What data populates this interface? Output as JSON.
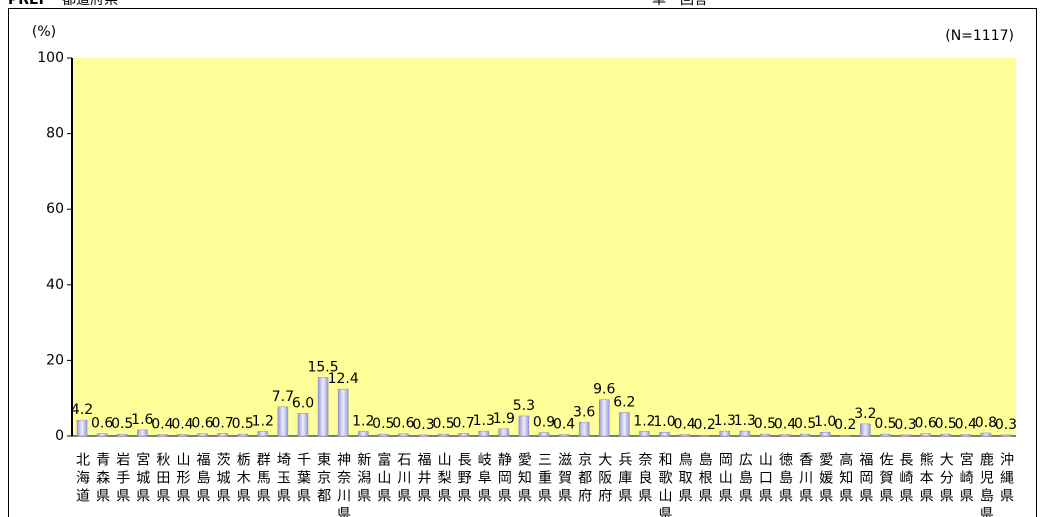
{
  "header": {
    "code": "PREF",
    "label": "都道府県",
    "answer_type": "単一回答"
  },
  "chart_data": {
    "type": "bar",
    "y_label": "(%)",
    "annotation": "(N=1117)",
    "categories": [
      "北海道",
      "青森県",
      "岩手県",
      "宮城県",
      "秋田県",
      "山形県",
      "福島県",
      "茨城県",
      "栃木県",
      "群馬県",
      "埼玉県",
      "千葉県",
      "東京都",
      "神奈川県",
      "新潟県",
      "富山県",
      "石川県",
      "福井県",
      "山梨県",
      "長野県",
      "岐阜県",
      "静岡県",
      "愛知県",
      "三重県",
      "滋賀県",
      "京都府",
      "大阪府",
      "兵庫県",
      "奈良県",
      "和歌山県",
      "鳥取県",
      "島根県",
      "岡山県",
      "広島県",
      "山口県",
      "徳島県",
      "香川県",
      "愛媛県",
      "高知県",
      "福岡県",
      "佐賀県",
      "長崎県",
      "熊本県",
      "大分県",
      "宮崎県",
      "鹿児島県",
      "沖縄県"
    ],
    "values": [
      4.2,
      0.6,
      0.5,
      1.6,
      0.4,
      0.4,
      0.6,
      0.7,
      0.5,
      1.2,
      7.7,
      6.0,
      15.5,
      12.4,
      1.2,
      0.5,
      0.6,
      0.3,
      0.5,
      0.7,
      1.3,
      1.9,
      5.3,
      0.9,
      0.4,
      3.6,
      9.6,
      6.2,
      1.2,
      1.0,
      0.4,
      0.2,
      1.3,
      1.3,
      0.5,
      0.4,
      0.5,
      1.0,
      0.2,
      3.2,
      0.5,
      0.3,
      0.6,
      0.5,
      0.4,
      0.8,
      0.3
    ],
    "value_labels": [
      "4.2",
      "0.6",
      "0.5",
      "1.6",
      "0.4",
      "0.4",
      "0.6",
      "0.7",
      "0.5",
      "1.2",
      "7.7",
      "6.0",
      "15.5",
      "12.4",
      "1.2",
      "0.5",
      "0.6",
      "0.3",
      "0.5",
      "0.7",
      "1.3",
      "1.9",
      "5.3",
      "0.9",
      "0.4",
      "3.6",
      "9.6",
      "6.2",
      "1.2",
      "1.0",
      "0.4",
      "0.2",
      "1.3",
      "1.3",
      "0.5",
      "0.4",
      "0.5",
      "1.0",
      "0.2",
      "3.2",
      "0.5",
      "0.3",
      "0.6",
      "0.5",
      "0.4",
      "0.8",
      "0.3"
    ],
    "color": "#c8c8f0",
    "plot_background": "#ffff99",
    "ylim": [
      0,
      100
    ],
    "yticks": [
      0,
      20,
      40,
      60,
      80,
      100
    ]
  }
}
